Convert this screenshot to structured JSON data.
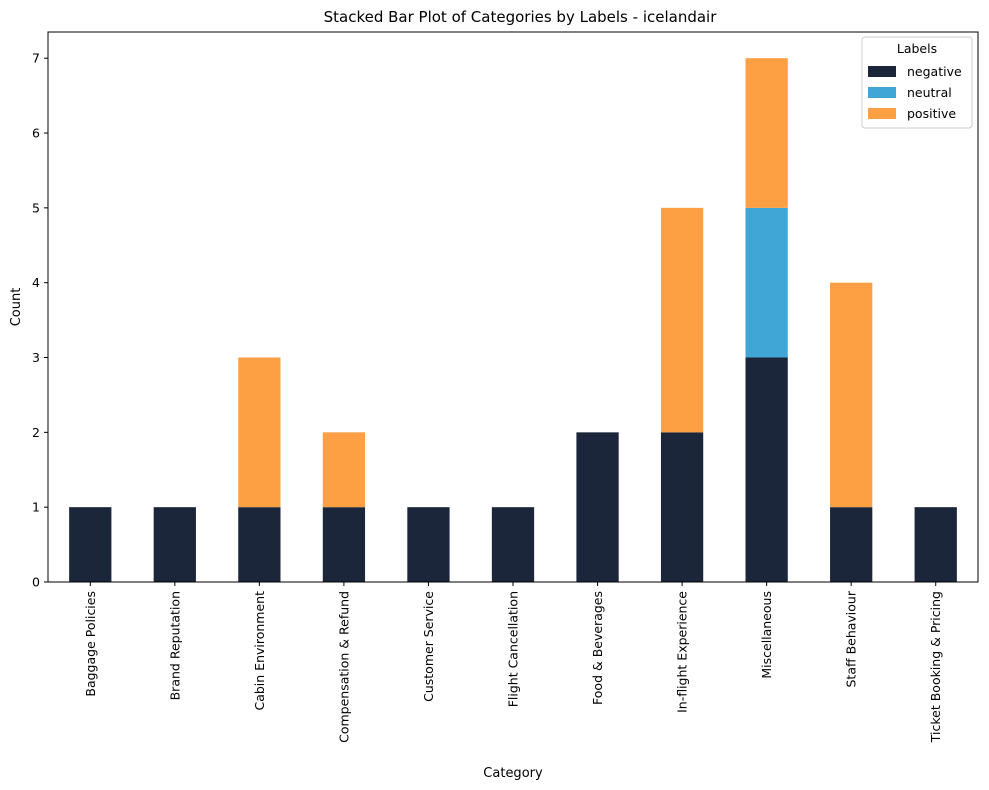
{
  "chart_data": {
    "type": "bar",
    "stacked": true,
    "title": "Stacked Bar Plot of Categories by Labels - icelandair",
    "xlabel": "Category",
    "ylabel": "Count",
    "ylim": [
      0,
      7.35
    ],
    "yticks": [
      "0",
      "1",
      "2",
      "3",
      "4",
      "5",
      "6",
      "7"
    ],
    "grid": false,
    "legend": {
      "title": "Labels",
      "placement": "top-right"
    },
    "categories": [
      "Baggage Policies",
      "Brand Reputation",
      "Cabin Environment",
      "Compensation & Refund",
      "Customer Service",
      "Flight Cancellation",
      "Food & Beverages",
      "In-flight Experience",
      "Miscellaneous",
      "Staff Behaviour",
      "Ticket Booking & Pricing"
    ],
    "series": [
      {
        "name": "negative",
        "color": "#1c263b",
        "values": [
          1,
          1,
          1,
          1,
          1,
          1,
          2,
          2,
          3,
          1,
          1
        ]
      },
      {
        "name": "neutral",
        "color": "#40a6d6",
        "values": [
          0,
          0,
          0,
          0,
          0,
          0,
          0,
          0,
          2,
          0,
          0
        ]
      },
      {
        "name": "positive",
        "color": "#fd9f43",
        "values": [
          0,
          0,
          2,
          1,
          0,
          0,
          0,
          3,
          2,
          3,
          0
        ]
      }
    ]
  }
}
